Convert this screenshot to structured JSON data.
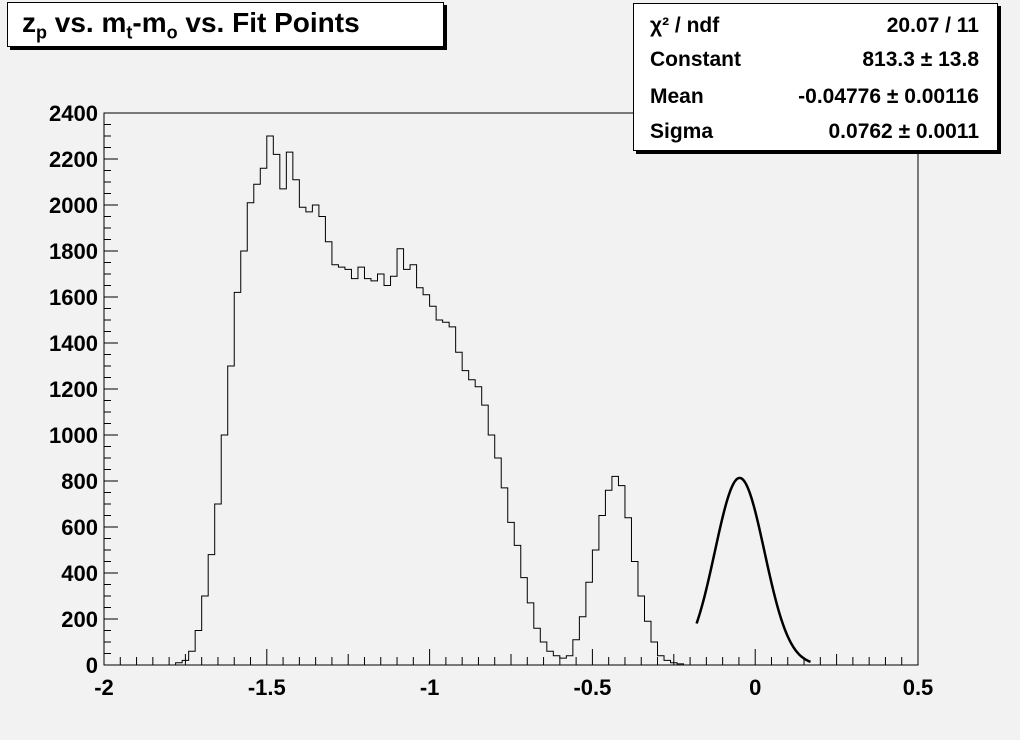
{
  "title": {
    "part1": "z",
    "sub1": "p",
    "part2": " vs. m",
    "sub2": "t",
    "part3": "-m",
    "sub3": "o",
    "part4": " vs. Fit Points"
  },
  "stats": [
    {
      "key": "χ² / ndf",
      "value": "20.07 / 11"
    },
    {
      "key": "Constant",
      "value": "813.3 ± 13.8"
    },
    {
      "key": "Mean",
      "value": "-0.04776 ± 0.00116"
    },
    {
      "key": "Sigma",
      "value": "0.0762 ± 0.0011"
    }
  ],
  "chart_data": {
    "type": "histogram",
    "xlim": [
      -2,
      0.5
    ],
    "ylim": [
      0,
      2400
    ],
    "x_ticks": [
      -2,
      -1.5,
      -1,
      -0.5,
      0,
      0.5
    ],
    "x_tick_labels": [
      "-2",
      "-1.5",
      "-1",
      "-0.5",
      "0",
      "0.5"
    ],
    "y_ticks": [
      0,
      200,
      400,
      600,
      800,
      1000,
      1200,
      1400,
      1600,
      1800,
      2000,
      2200,
      2400
    ],
    "y_tick_labels": [
      "0",
      "200",
      "400",
      "600",
      "800",
      "1000",
      "1200",
      "1400",
      "1600",
      "1800",
      "2000",
      "2200",
      "2400"
    ],
    "bin_width": 0.02,
    "bin_start": -1.78,
    "counts": [
      10,
      20,
      60,
      150,
      300,
      480,
      700,
      1000,
      1300,
      1620,
      1800,
      2010,
      2090,
      2160,
      2300,
      2220,
      2070,
      2230,
      2110,
      1990,
      1970,
      2000,
      1950,
      1840,
      1740,
      1730,
      1720,
      1680,
      1730,
      1680,
      1670,
      1700,
      1650,
      1690,
      1810,
      1720,
      1740,
      1640,
      1610,
      1560,
      1500,
      1490,
      1470,
      1360,
      1280,
      1240,
      1210,
      1130,
      1000,
      900,
      770,
      620,
      520,
      380,
      270,
      160,
      100,
      60,
      40,
      30,
      40,
      110,
      210,
      360,
      500,
      650,
      760,
      820,
      780,
      640,
      450,
      300,
      190,
      100,
      40,
      20,
      10,
      5
    ],
    "fit": {
      "function": "gaus",
      "constant": 813.3,
      "mean": -0.04776,
      "sigma": 0.0762,
      "range": [
        -0.18,
        0.17
      ]
    }
  }
}
